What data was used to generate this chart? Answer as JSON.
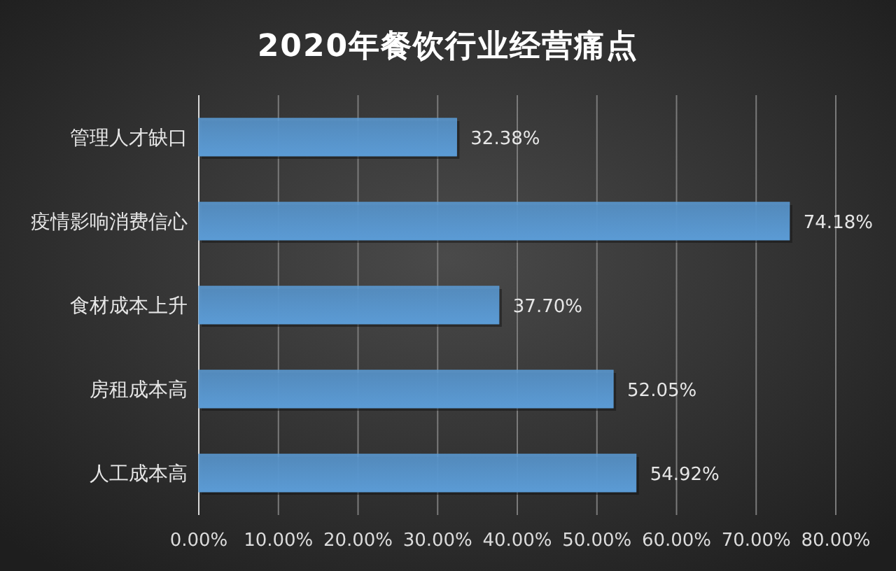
{
  "chart_data": {
    "type": "bar",
    "orientation": "horizontal",
    "title": "2020年餐饮行业经营痛点",
    "categories": [
      "管理人才缺口",
      "疫情影响消费信心",
      "食材成本上升",
      "房租成本高",
      "人工成本高"
    ],
    "values": [
      32.38,
      74.18,
      37.7,
      52.05,
      54.92
    ],
    "value_labels": [
      "32.38%",
      "74.18%",
      "37.70%",
      "52.05%",
      "54.92%"
    ],
    "color": "#5b9bd5",
    "xlim": [
      0,
      80
    ],
    "xticks": [
      {
        "value": 0,
        "label": "0.00%"
      },
      {
        "value": 10,
        "label": "10.00%"
      },
      {
        "value": 20,
        "label": "20.00%"
      },
      {
        "value": 30,
        "label": "30.00%"
      },
      {
        "value": 40,
        "label": "40.00%"
      },
      {
        "value": 50,
        "label": "50.00%"
      },
      {
        "value": 60,
        "label": "60.00%"
      },
      {
        "value": 70,
        "label": "70.00%"
      },
      {
        "value": 80,
        "label": "80.00%"
      }
    ],
    "grid": "x"
  }
}
